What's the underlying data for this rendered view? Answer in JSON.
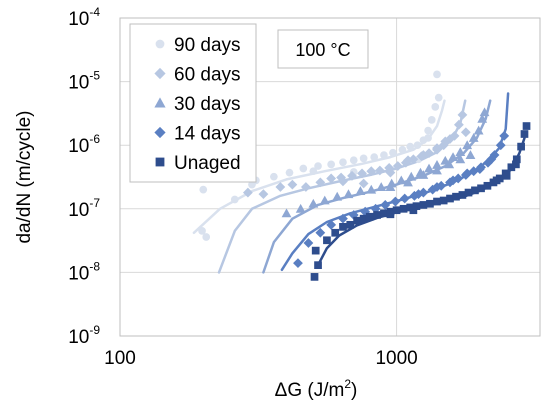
{
  "chart_data": {
    "type": "scatter",
    "xlabel": "ΔG (J/m",
    "xlabel_sup": "2",
    "xlabel_end": ")",
    "ylabel": "da/dN (m/cycle)",
    "x_scale": "log",
    "y_scale": "log",
    "xlim": [
      100,
      3300
    ],
    "ylim": [
      1e-09,
      0.0001
    ],
    "x_ticks": [
      {
        "value": 100,
        "label": "100"
      },
      {
        "value": 1000,
        "label": "1000"
      }
    ],
    "y_ticks": [
      {
        "value": 1e-09,
        "base": "10",
        "exp": "-9"
      },
      {
        "value": 1e-08,
        "base": "10",
        "exp": "-8"
      },
      {
        "value": 1e-07,
        "base": "10",
        "exp": "-7"
      },
      {
        "value": 1e-06,
        "base": "10",
        "exp": "-6"
      },
      {
        "value": 1e-05,
        "base": "10",
        "exp": "-5"
      },
      {
        "value": 0.0001,
        "base": "10",
        "exp": "-4"
      }
    ],
    "grid": true,
    "legend_position": "top-left",
    "annotation": "100 °C",
    "series": [
      {
        "name": "90 days",
        "marker": "circle",
        "color": "#d9e1ee",
        "points": [
          [
            198,
            4.5e-08
          ],
          [
            205,
            3.6e-08
          ],
          [
            200,
            2e-07
          ],
          [
            260,
            1.4e-07
          ],
          [
            300,
            2.4e-07
          ],
          [
            310,
            2.8e-07
          ],
          [
            360,
            3.2e-07
          ],
          [
            410,
            3.7e-07
          ],
          [
            460,
            4.3e-07
          ],
          [
            520,
            4.7e-07
          ],
          [
            580,
            5e-07
          ],
          [
            640,
            5.4e-07
          ],
          [
            700,
            5.8e-07
          ],
          [
            760,
            6.2e-07
          ],
          [
            830,
            6.5e-07
          ],
          [
            900,
            7e-07
          ],
          [
            970,
            7.6e-07
          ],
          [
            1050,
            8.5e-07
          ],
          [
            1120,
            9.5e-07
          ],
          [
            1190,
            1e-06
          ],
          [
            1250,
            1.2e-06
          ],
          [
            1300,
            1.7e-06
          ],
          [
            1340,
            2.5e-06
          ],
          [
            1380,
            4e-06
          ],
          [
            1400,
            1.3e-05
          ],
          [
            1420,
            5.6e-06
          ],
          [
            1200,
            6e-07
          ],
          [
            1300,
            1.3e-06
          ],
          [
            700,
            3.8e-07
          ],
          [
            500,
            3.9e-07
          ]
        ],
        "fit": [
          [
            185,
            4.2e-08
          ],
          [
            230,
            1e-07
          ],
          [
            300,
            1.9e-07
          ],
          [
            400,
            2.9e-07
          ],
          [
            550,
            3.9e-07
          ],
          [
            750,
            5.1e-07
          ],
          [
            950,
            6.5e-07
          ],
          [
            1150,
            8.5e-07
          ],
          [
            1300,
            1.25e-06
          ],
          [
            1400,
            2e-06
          ],
          [
            1460,
            3.5e-06
          ],
          [
            1490,
            5e-06
          ]
        ]
      },
      {
        "name": "60 days",
        "marker": "diamond",
        "color": "#b7c7e2",
        "points": [
          [
            290,
            1.8e-07
          ],
          [
            330,
            1.7e-07
          ],
          [
            380,
            2.2e-07
          ],
          [
            420,
            2.4e-07
          ],
          [
            470,
            2.2e-07
          ],
          [
            530,
            2.6e-07
          ],
          [
            580,
            3e-07
          ],
          [
            630,
            3.1e-07
          ],
          [
            690,
            3.3e-07
          ],
          [
            750,
            3.6e-07
          ],
          [
            810,
            3.9e-07
          ],
          [
            870,
            4e-07
          ],
          [
            940,
            4.4e-07
          ],
          [
            1010,
            4.7e-07
          ],
          [
            1080,
            5.3e-07
          ],
          [
            1150,
            6e-07
          ],
          [
            1230,
            6.7e-07
          ],
          [
            1310,
            7.5e-07
          ],
          [
            1400,
            8.5e-07
          ],
          [
            1480,
            1e-06
          ],
          [
            1560,
            1.25e-06
          ],
          [
            1620,
            1.4e-06
          ],
          [
            1680,
            2.1e-06
          ],
          [
            1730,
            3e-06
          ],
          [
            1780,
            1.6e-06
          ],
          [
            1500,
            1.15e-06
          ],
          [
            1400,
            9e-07
          ],
          [
            1250,
            7e-07
          ],
          [
            1100,
            5.8e-07
          ],
          [
            950,
            3.7e-07
          ],
          [
            760,
            2.5e-07
          ],
          [
            640,
            2.7e-07
          ]
        ],
        "fit": [
          [
            228,
            1e-08
          ],
          [
            260,
            4.5e-08
          ],
          [
            300,
            1e-07
          ],
          [
            380,
            1.6e-07
          ],
          [
            480,
            2.1e-07
          ],
          [
            620,
            2.7e-07
          ],
          [
            800,
            3.4e-07
          ],
          [
            1000,
            4.3e-07
          ],
          [
            1200,
            5.6e-07
          ],
          [
            1400,
            7.8e-07
          ],
          [
            1580,
            1.2e-06
          ],
          [
            1700,
            2.2e-06
          ],
          [
            1770,
            5e-06
          ]
        ]
      },
      {
        "name": "30 days",
        "marker": "triangle",
        "color": "#8ea7d3",
        "points": [
          [
            400,
            8.5e-08
          ],
          [
            450,
            1e-07
          ],
          [
            500,
            1.2e-07
          ],
          [
            550,
            1.35e-07
          ],
          [
            610,
            1.55e-07
          ],
          [
            670,
            1.7e-07
          ],
          [
            740,
            1.9e-07
          ],
          [
            810,
            2e-07
          ],
          [
            880,
            2.2e-07
          ],
          [
            960,
            2.5e-07
          ],
          [
            1040,
            2.8e-07
          ],
          [
            1130,
            3.2e-07
          ],
          [
            1220,
            3.7e-07
          ],
          [
            1310,
            4.3e-07
          ],
          [
            1400,
            4.9e-07
          ],
          [
            1500,
            5.7e-07
          ],
          [
            1600,
            6.5e-07
          ],
          [
            1700,
            7.8e-07
          ],
          [
            1800,
            1e-06
          ],
          [
            1900,
            1.3e-06
          ],
          [
            1980,
            1.7e-06
          ],
          [
            2040,
            2.6e-06
          ],
          [
            2080,
            3.3e-06
          ],
          [
            1850,
            7e-07
          ],
          [
            1700,
            6e-07
          ],
          [
            1550,
            5e-07
          ],
          [
            1400,
            4e-07
          ],
          [
            1250,
            3.4e-07
          ],
          [
            1100,
            2.6e-07
          ],
          [
            950,
            2.2e-07
          ]
        ],
        "fit": [
          [
            330,
            1e-08
          ],
          [
            360,
            3e-08
          ],
          [
            420,
            7e-08
          ],
          [
            520,
            1.15e-07
          ],
          [
            650,
            1.5e-07
          ],
          [
            800,
            1.85e-07
          ],
          [
            1000,
            2.4e-07
          ],
          [
            1250,
            3.3e-07
          ],
          [
            1500,
            4.7e-07
          ],
          [
            1750,
            7.5e-07
          ],
          [
            1950,
            1.3e-06
          ],
          [
            2100,
            2.6e-06
          ],
          [
            2180,
            5e-06
          ]
        ]
      },
      {
        "name": "14 days",
        "marker": "diamond",
        "color": "#5a7fc2",
        "points": [
          [
            440,
            1.4e-08
          ],
          [
            480,
            2.9e-08
          ],
          [
            530,
            4.2e-08
          ],
          [
            580,
            5.6e-08
          ],
          [
            640,
            7e-08
          ],
          [
            700,
            8e-08
          ],
          [
            770,
            9e-08
          ],
          [
            840,
            1e-07
          ],
          [
            910,
            1.15e-07
          ],
          [
            990,
            1.3e-07
          ],
          [
            1070,
            1.45e-07
          ],
          [
            1160,
            1.6e-07
          ],
          [
            1250,
            1.8e-07
          ],
          [
            1350,
            2e-07
          ],
          [
            1450,
            2.3e-07
          ],
          [
            1560,
            2.6e-07
          ],
          [
            1670,
            3e-07
          ],
          [
            1780,
            3.4e-07
          ],
          [
            1900,
            3.9e-07
          ],
          [
            2020,
            4.5e-07
          ],
          [
            2140,
            5.3e-07
          ],
          [
            2260,
            7e-07
          ],
          [
            2380,
            1e-06
          ],
          [
            2450,
            1.4e-06
          ],
          [
            2200,
            6e-07
          ],
          [
            2000,
            4.2e-07
          ],
          [
            1800,
            3.6e-07
          ],
          [
            1600,
            2.8e-07
          ],
          [
            1400,
            2.2e-07
          ],
          [
            1200,
            1.7e-07
          ]
        ],
        "fit": [
          [
            385,
            1.1e-08
          ],
          [
            420,
            2e-08
          ],
          [
            480,
            4e-08
          ],
          [
            560,
            6.2e-08
          ],
          [
            680,
            8.5e-08
          ],
          [
            850,
            1.1e-07
          ],
          [
            1050,
            1.4e-07
          ],
          [
            1300,
            1.85e-07
          ],
          [
            1600,
            2.6e-07
          ],
          [
            1900,
            3.8e-07
          ],
          [
            2150,
            5.8e-07
          ],
          [
            2350,
            9e-07
          ],
          [
            2480,
            1.8e-06
          ],
          [
            2530,
            6.5e-06
          ]
        ]
      },
      {
        "name": "Unaged",
        "marker": "square",
        "color": "#2e4d8d",
        "points": [
          [
            505,
            8.5e-09
          ],
          [
            510,
            2.2e-08
          ],
          [
            520,
            1.3e-08
          ],
          [
            560,
            3.2e-08
          ],
          [
            600,
            4.2e-08
          ],
          [
            640,
            5.2e-08
          ],
          [
            680,
            5.6e-08
          ],
          [
            720,
            6.5e-08
          ],
          [
            760,
            7e-08
          ],
          [
            800,
            7.5e-08
          ],
          [
            850,
            8e-08
          ],
          [
            900,
            8.5e-08
          ],
          [
            950,
            9e-08
          ],
          [
            1000,
            9.5e-08
          ],
          [
            1060,
            1e-07
          ],
          [
            1120,
            1.05e-07
          ],
          [
            1180,
            1.1e-07
          ],
          [
            1250,
            1.15e-07
          ],
          [
            1320,
            1.2e-07
          ],
          [
            1400,
            1.3e-07
          ],
          [
            1480,
            1.35e-07
          ],
          [
            1560,
            1.45e-07
          ],
          [
            1640,
            1.55e-07
          ],
          [
            1730,
            1.65e-07
          ],
          [
            1820,
            1.8e-07
          ],
          [
            1920,
            1.95e-07
          ],
          [
            2020,
            2.1e-07
          ],
          [
            2130,
            2.3e-07
          ],
          [
            2240,
            2.6e-07
          ],
          [
            2360,
            3e-07
          ],
          [
            2480,
            3.6e-07
          ],
          [
            2600,
            4.5e-07
          ],
          [
            2720,
            6e-07
          ],
          [
            2820,
            9.5e-07
          ],
          [
            2900,
            1.5e-06
          ],
          [
            2950,
            2e-06
          ],
          [
            2700,
            5e-07
          ],
          [
            2500,
            3.3e-07
          ],
          [
            2300,
            2.8e-07
          ],
          [
            1150,
            9.5e-08
          ],
          [
            950,
            8.2e-08
          ]
        ],
        "fit": [
          [
            520,
            1.3e-08
          ],
          [
            560,
            2.4e-08
          ],
          [
            620,
            3.8e-08
          ],
          [
            720,
            5.5e-08
          ],
          [
            850,
            7.2e-08
          ],
          [
            1000,
            8.8e-08
          ],
          [
            1200,
            1.05e-07
          ],
          [
            1450,
            1.25e-07
          ],
          [
            1750,
            1.55e-07
          ],
          [
            2050,
            2e-07
          ],
          [
            2350,
            2.8e-07
          ],
          [
            2600,
            4.2e-07
          ],
          [
            2780,
            7.5e-07
          ],
          [
            2900,
            1.3e-06
          ]
        ]
      }
    ]
  }
}
